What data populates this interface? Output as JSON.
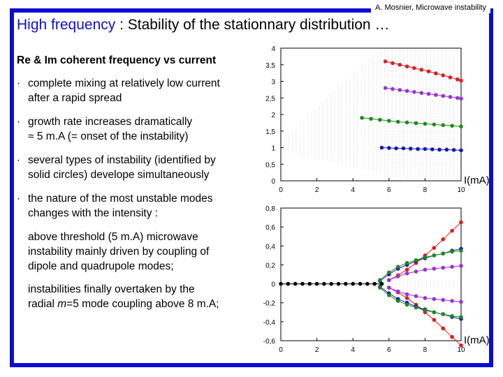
{
  "header": {
    "author": "A. Mosnier, Microwave instability"
  },
  "title": {
    "main": "High frequency",
    "rest": " : Stability of the stationnary distribution …"
  },
  "content": {
    "heading": "Re & Im coherent frequency vs current",
    "bullets": [
      {
        "line1": "complete mixing at relatively low current",
        "line2": "after a rapid spread"
      },
      {
        "line1": "growth rate increases dramatically",
        "line2": "≈ 5 m.A (= onset of the instability)"
      },
      {
        "line1": "several types of instability (identified by",
        "line2": "solid circles) develope simultaneously"
      },
      {
        "line1": "the nature of the most unstable modes",
        "line2": "changes with the intensity :"
      }
    ],
    "para1": [
      "above threshold (5 m.A) microwave",
      "instability mainly driven by coupling of",
      "dipole and quadrupole modes;"
    ],
    "para2a": "instabilities finally overtaken by the",
    "para2b_pre": "radial ",
    "para2b_m": "m",
    "para2b_post": "=5 mode coupling above 8 m.A;"
  },
  "chart_data": [
    {
      "type": "scatter",
      "xlabel": "I(mA)",
      "xlim": [
        0,
        10
      ],
      "ylim": [
        0,
        4
      ],
      "xticks": [
        "0",
        "2",
        "4",
        "6",
        "8",
        "10"
      ],
      "yticks": [
        "0",
        "0,5",
        "1",
        "1,5",
        "2",
        "2,5",
        "3",
        "3,5",
        "4"
      ],
      "series": [
        {
          "color": "#e41a1c",
          "x": [
            5.8,
            6.2,
            6.6,
            7.0,
            7.4,
            7.8,
            8.2,
            8.6,
            9.0,
            9.4,
            9.8,
            10.0
          ],
          "y": [
            3.6,
            3.55,
            3.5,
            3.45,
            3.4,
            3.35,
            3.3,
            3.24,
            3.18,
            3.12,
            3.06,
            3.02
          ]
        },
        {
          "color": "#9b30d9",
          "x": [
            5.8,
            6.2,
            6.6,
            7.0,
            7.4,
            7.8,
            8.2,
            8.6,
            9.0,
            9.4,
            9.8,
            10.0
          ],
          "y": [
            2.8,
            2.77,
            2.74,
            2.71,
            2.68,
            2.65,
            2.62,
            2.59,
            2.56,
            2.53,
            2.5,
            2.48
          ]
        },
        {
          "color": "#1a8a1a",
          "x": [
            4.5,
            5.0,
            5.5,
            6.0,
            6.5,
            7.0,
            7.5,
            8.0,
            8.5,
            9.0,
            9.5,
            10.0
          ],
          "y": [
            1.9,
            1.87,
            1.84,
            1.81,
            1.78,
            1.76,
            1.74,
            1.72,
            1.7,
            1.68,
            1.66,
            1.64
          ]
        },
        {
          "color": "#1515c0",
          "x": [
            5.6,
            6.0,
            6.4,
            6.8,
            7.2,
            7.6,
            8.0,
            8.4,
            8.8,
            9.2,
            9.6,
            10.0
          ],
          "y": [
            1.0,
            0.99,
            0.98,
            0.98,
            0.97,
            0.96,
            0.96,
            0.95,
            0.94,
            0.94,
            0.93,
            0.92
          ]
        }
      ]
    },
    {
      "type": "scatter",
      "xlabel": "I(mA)",
      "xlim": [
        0,
        10
      ],
      "ylim": [
        -0.6,
        0.8
      ],
      "xticks": [
        "0",
        "2",
        "4",
        "6",
        "8",
        "10"
      ],
      "yticks": [
        "-0,6",
        "-0,4",
        "-0,2",
        "0",
        "0,2",
        "0,4",
        "0,6",
        "0,8"
      ],
      "series": [
        {
          "color": "#000000",
          "x": [
            0,
            0.4,
            0.8,
            1.2,
            1.6,
            2.0,
            2.4,
            2.8,
            3.2,
            3.6,
            4.0,
            4.4,
            4.8,
            5.2,
            5.6
          ],
          "y": [
            0,
            0,
            0,
            0,
            0,
            0,
            0,
            0,
            0,
            0,
            0,
            0,
            0,
            0,
            0
          ]
        },
        {
          "color": "#e41a1c",
          "x": [
            6.0,
            6.5,
            7.0,
            7.5,
            8.0,
            8.5,
            9.0,
            9.5,
            10.0
          ],
          "y": [
            0.04,
            0.09,
            0.15,
            0.22,
            0.3,
            0.38,
            0.47,
            0.56,
            0.65
          ]
        },
        {
          "color": "#e41a1c",
          "x": [
            6.0,
            6.5,
            7.0,
            7.5,
            8.0,
            8.5,
            9.0,
            9.5,
            10.0
          ],
          "y": [
            -0.04,
            -0.09,
            -0.15,
            -0.22,
            -0.3,
            -0.38,
            -0.47,
            -0.56,
            -0.65
          ]
        },
        {
          "color": "#1515c0",
          "x": [
            5.5,
            6.0,
            6.5,
            7.0,
            7.5,
            8.0,
            8.5,
            9.0,
            9.5,
            10.0
          ],
          "y": [
            0.03,
            0.1,
            0.16,
            0.2,
            0.24,
            0.27,
            0.3,
            0.32,
            0.35,
            0.37
          ]
        },
        {
          "color": "#1515c0",
          "x": [
            5.5,
            6.0,
            6.5,
            7.0,
            7.5,
            8.0,
            8.5,
            9.0,
            9.5,
            10.0
          ],
          "y": [
            -0.03,
            -0.1,
            -0.16,
            -0.2,
            -0.24,
            -0.27,
            -0.3,
            -0.32,
            -0.35,
            -0.37
          ]
        },
        {
          "color": "#1a8a1a",
          "x": [
            5.5,
            6.0,
            6.5,
            7.0,
            7.5,
            8.0,
            8.5,
            9.0,
            9.5,
            10.0
          ],
          "y": [
            0.04,
            0.12,
            0.18,
            0.22,
            0.25,
            0.28,
            0.3,
            0.32,
            0.34,
            0.35
          ]
        },
        {
          "color": "#1a8a1a",
          "x": [
            5.5,
            6.0,
            6.5,
            7.0,
            7.5,
            8.0,
            8.5,
            9.0,
            9.5,
            10.0
          ],
          "y": [
            -0.04,
            -0.12,
            -0.18,
            -0.22,
            -0.25,
            -0.28,
            -0.3,
            -0.32,
            -0.34,
            -0.35
          ]
        },
        {
          "color": "#9b30d9",
          "x": [
            6.0,
            6.5,
            7.0,
            7.5,
            8.0,
            8.5,
            9.0,
            9.5,
            10.0
          ],
          "y": [
            0.04,
            0.08,
            0.11,
            0.13,
            0.15,
            0.16,
            0.17,
            0.18,
            0.19
          ]
        },
        {
          "color": "#9b30d9",
          "x": [
            6.0,
            6.5,
            7.0,
            7.5,
            8.0,
            8.5,
            9.0,
            9.5,
            10.0
          ],
          "y": [
            -0.04,
            -0.08,
            -0.11,
            -0.13,
            -0.15,
            -0.16,
            -0.17,
            -0.18,
            -0.19
          ]
        }
      ]
    }
  ]
}
